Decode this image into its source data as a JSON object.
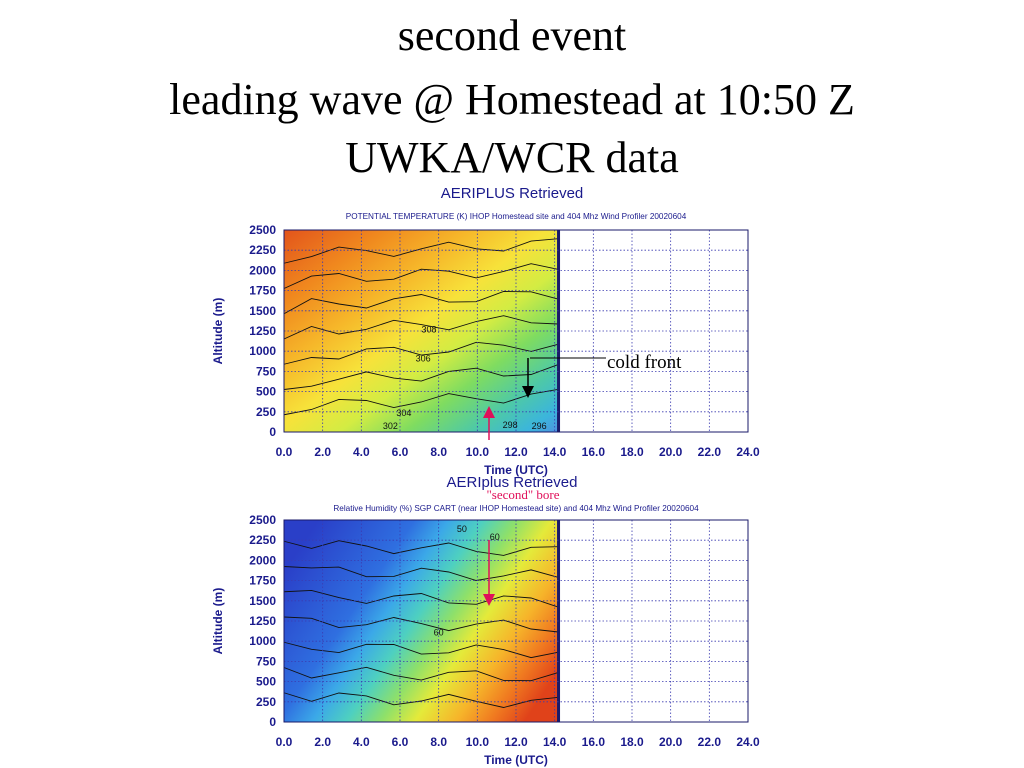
{
  "slide": {
    "title_lines": [
      "second event",
      "leading wave @ Homestead at 10:50 Z",
      "UWKA/WCR data"
    ]
  },
  "annotations": {
    "cold_front": "cold front",
    "second_bore": "\"second\" bore"
  },
  "colors": {
    "axis_label": "#1a1a8c",
    "grid": "#3b3bb0",
    "arrow_red": "#e0105a"
  },
  "chart_data": [
    {
      "type": "heatmap",
      "title": "AERIPLUS Retrieved",
      "subtitle": "POTENTIAL TEMPERATURE  (K)  IHOP Homestead site and 404 Mhz Wind Profiler  20020604",
      "xlabel": "Time (UTC)",
      "ylabel": "Altitude (m)",
      "xlim": [
        0,
        24
      ],
      "ylim": [
        0,
        2500
      ],
      "x_ticks": [
        "0.0",
        "2.0",
        "4.0",
        "6.0",
        "8.0",
        "10.0",
        "12.0",
        "14.0",
        "16.0",
        "18.0",
        "20.0",
        "22.0",
        "24.0"
      ],
      "y_ticks": [
        "0",
        "250",
        "500",
        "750",
        "1000",
        "1250",
        "1500",
        "1750",
        "2000",
        "2250",
        "2500"
      ],
      "data_extent_x": [
        0,
        14.2
      ],
      "grid": true,
      "contour_labels": [
        {
          "text": "308",
          "x": 7.5,
          "y": 1230
        },
        {
          "text": "306",
          "x": 7.2,
          "y": 870
        },
        {
          "text": "304",
          "x": 6.2,
          "y": 200
        },
        {
          "text": "302",
          "x": 5.5,
          "y": 40
        },
        {
          "text": "298",
          "x": 11.7,
          "y": 50
        },
        {
          "text": "296",
          "x": 13.2,
          "y": 40
        }
      ],
      "colorscale": [
        "#e2541c",
        "#f0881e",
        "#f6b82a",
        "#f7e23a",
        "#d3ec43",
        "#7fdc60",
        "#4ec9a6",
        "#3bb5dc",
        "#4f92e0"
      ],
      "value_range_K": [
        296,
        316
      ]
    },
    {
      "type": "heatmap",
      "title": "AERIplus Retrieved",
      "subtitle": "Relative Humidity (%)  SGP CART (near IHOP Homestead site) and 404 Mhz Wind Profiler 20020604",
      "xlabel": "Time (UTC)",
      "ylabel": "Altitude (m)",
      "xlim": [
        0,
        24
      ],
      "ylim": [
        0,
        2500
      ],
      "x_ticks": [
        "0.0",
        "2.0",
        "4.0",
        "6.0",
        "8.0",
        "10.0",
        "12.0",
        "14.0",
        "16.0",
        "18.0",
        "20.0",
        "22.0",
        "24.0"
      ],
      "y_ticks": [
        "0",
        "250",
        "500",
        "750",
        "1000",
        "1250",
        "1500",
        "1750",
        "2000",
        "2250",
        "2500"
      ],
      "data_extent_x": [
        0,
        14.2
      ],
      "grid": true,
      "contour_labels": [
        {
          "text": "50",
          "x": 9.2,
          "y": 2350
        },
        {
          "text": "60",
          "x": 10.9,
          "y": 2250
        },
        {
          "text": "60",
          "x": 8.0,
          "y": 1070
        }
      ],
      "colorscale": [
        "#2a3fc8",
        "#2f6fe0",
        "#3ba8e8",
        "#4ed0c0",
        "#8ee06a",
        "#e4ea3a",
        "#f6b42a",
        "#f07a20",
        "#e0421a"
      ],
      "value_range_pct": [
        0,
        100
      ]
    }
  ]
}
